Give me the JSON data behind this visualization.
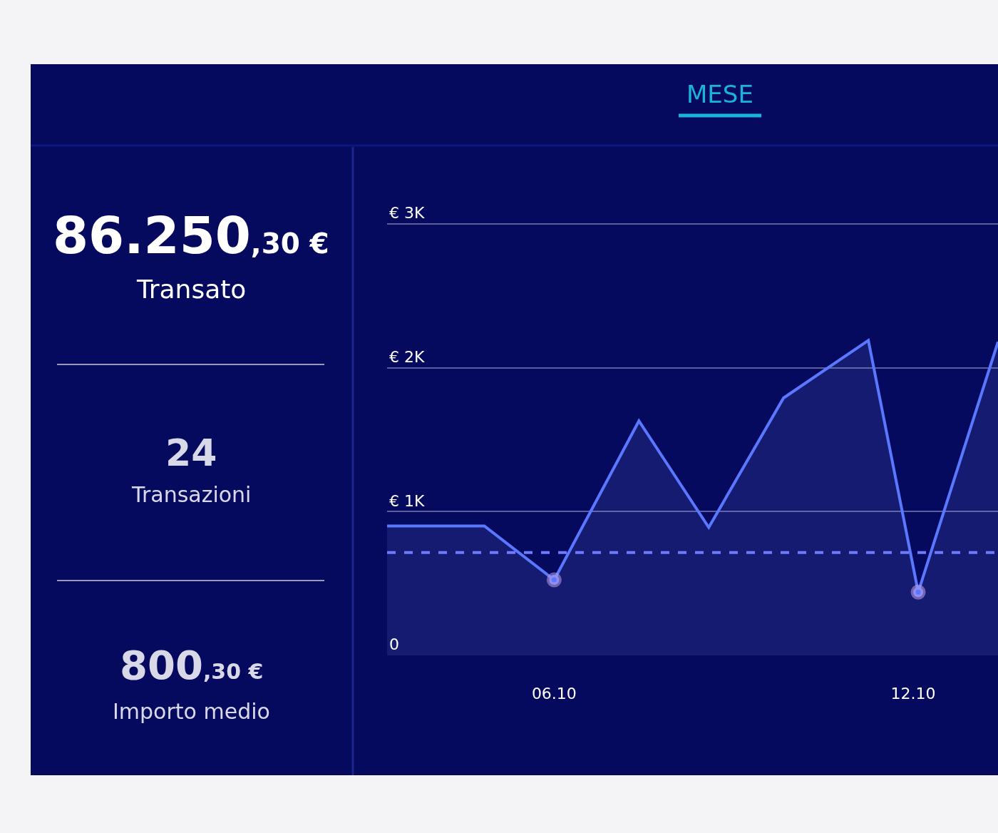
{
  "chart_data": [
    {
      "type": "other",
      "annotations": [
        "86.250,30 €",
        "Transato",
        "24",
        "Transazioni",
        "800,30 €",
        "Importo medio"
      ]
    },
    {
      "type": "area",
      "title": "MESE",
      "x": [
        "--10-03T05:00",
        "--10-04T20:00",
        "--10-06",
        "--10-07T10:00",
        "--10-08T14:00",
        "--10-09T20:00",
        "--10-11T06:00",
        "--10-12T02:00",
        "--10-13T10:00"
      ],
      "series": [
        {
          "color": "#5a78ff",
          "marker": "none",
          "values": [
            900,
            900,
            525,
            1630,
            890,
            1790,
            2190,
            440,
            2180
          ]
        },
        {
          "type": "scatter",
          "color": "#5a78ff",
          "marker": "circle",
          "x": [
            "--10-06",
            "--10-12T02:00"
          ],
          "values": [
            525,
            440
          ]
        }
      ],
      "xlim": [
        "--10-03T05:00",
        "--10-13T10:00"
      ],
      "xticks": [
        {
          "value": "--10-06",
          "label": "06.10"
        },
        {
          "value": "--10-12",
          "label": "12.10"
        }
      ],
      "ylim": [
        0,
        3550
      ],
      "yticks": [
        {
          "value": 0,
          "label": "0"
        },
        {
          "value": 1000,
          "label": "€ 1K"
        },
        {
          "value": 2000,
          "label": "€ 2K"
        },
        {
          "value": 3000,
          "label": "€ 3K"
        }
      ],
      "ref_lines": [
        {
          "axis": "y",
          "value": 715,
          "color": "#6f7bff",
          "line_style": "dashed"
        }
      ],
      "grid": "y"
    }
  ]
}
